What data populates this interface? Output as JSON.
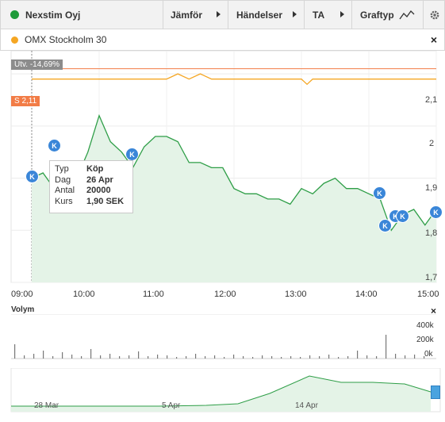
{
  "toolbar": {
    "title": "Nexstim Oyj",
    "title_dot_color": "#1f9b3a",
    "jamfor": "Jämför",
    "handelser": "Händelser",
    "ta": "TA",
    "graftyp": "Graftyp",
    "graftyp_icon": "line-chart-icon",
    "settings_icon": "gear-icon"
  },
  "compare": {
    "label": "OMX Stockholm 30",
    "dot_color": "#f5a623",
    "close": "×"
  },
  "main_chart": {
    "utv_label": "Utv. -14,69%",
    "s_label": "S 2,11",
    "y_ticks": [
      "2,1",
      "2",
      "1,9",
      "1,8",
      "1,7"
    ],
    "x_ticks": [
      "09:00",
      "10:00",
      "11:00",
      "12:00",
      "13:00",
      "14:00",
      "15:00"
    ],
    "marker_label": "K"
  },
  "tooltip": {
    "typ_label": "Typ",
    "typ_value": "Köp",
    "dag_label": "Dag",
    "dag_value": "26 Apr",
    "antal_label": "Antal",
    "antal_value": "20000",
    "kurs_label": "Kurs",
    "kurs_value": "1,90 SEK"
  },
  "volume": {
    "title": "Volym",
    "close": "×",
    "y_ticks": [
      "400k",
      "200k",
      "0k"
    ]
  },
  "navigator": {
    "labels": [
      "28 Mar",
      "5 Apr",
      "14 Apr"
    ]
  },
  "chart_data": {
    "type": "line",
    "x_ticks": [
      "09:00",
      "10:00",
      "11:00",
      "12:00",
      "13:00",
      "14:00",
      "15:00"
    ],
    "ylim": [
      1.7,
      2.12
    ],
    "series": [
      {
        "name": "Nexstim Oyj",
        "color": "#2e9e47",
        "x": [
          "09:00",
          "09:10",
          "09:20",
          "09:30",
          "09:40",
          "09:50",
          "10:00",
          "10:10",
          "10:20",
          "10:30",
          "10:40",
          "10:50",
          "11:00",
          "11:10",
          "11:20",
          "11:30",
          "11:40",
          "11:50",
          "12:00",
          "12:10",
          "12:20",
          "12:30",
          "12:40",
          "12:50",
          "13:00",
          "13:10",
          "13:20",
          "13:30",
          "13:40",
          "13:50",
          "14:00",
          "14:10",
          "14:20",
          "14:30",
          "14:40",
          "14:50",
          "15:00"
        ],
        "values": [
          1.9,
          1.91,
          1.88,
          1.92,
          1.9,
          1.95,
          2.02,
          1.97,
          1.95,
          1.92,
          1.96,
          1.98,
          1.98,
          1.97,
          1.93,
          1.93,
          1.92,
          1.92,
          1.88,
          1.87,
          1.87,
          1.86,
          1.86,
          1.85,
          1.88,
          1.87,
          1.89,
          1.9,
          1.88,
          1.88,
          1.87,
          1.86,
          1.8,
          1.83,
          1.84,
          1.81,
          1.84
        ]
      },
      {
        "name": "OMX Stockholm 30",
        "color": "#f5a623",
        "x": [
          "09:00",
          "10:00",
          "11:00",
          "11:10",
          "11:20",
          "11:30",
          "11:40",
          "12:00",
          "13:00",
          "13:05",
          "13:10",
          "14:00",
          "15:00"
        ],
        "values": [
          2.09,
          2.09,
          2.09,
          2.1,
          2.09,
          2.1,
          2.09,
          2.09,
          2.09,
          2.08,
          2.09,
          2.09,
          2.09
        ]
      }
    ],
    "markers": [
      {
        "x": "09:15",
        "label": "K"
      },
      {
        "x": "09:40",
        "label": "K"
      },
      {
        "x": "10:45",
        "label": "K"
      },
      {
        "x": "14:10",
        "label": "K"
      },
      {
        "x": "14:15",
        "label": "K"
      },
      {
        "x": "14:25",
        "label": "K"
      },
      {
        "x": "14:30",
        "label": "K"
      },
      {
        "x": "14:55",
        "label": "K"
      }
    ]
  }
}
